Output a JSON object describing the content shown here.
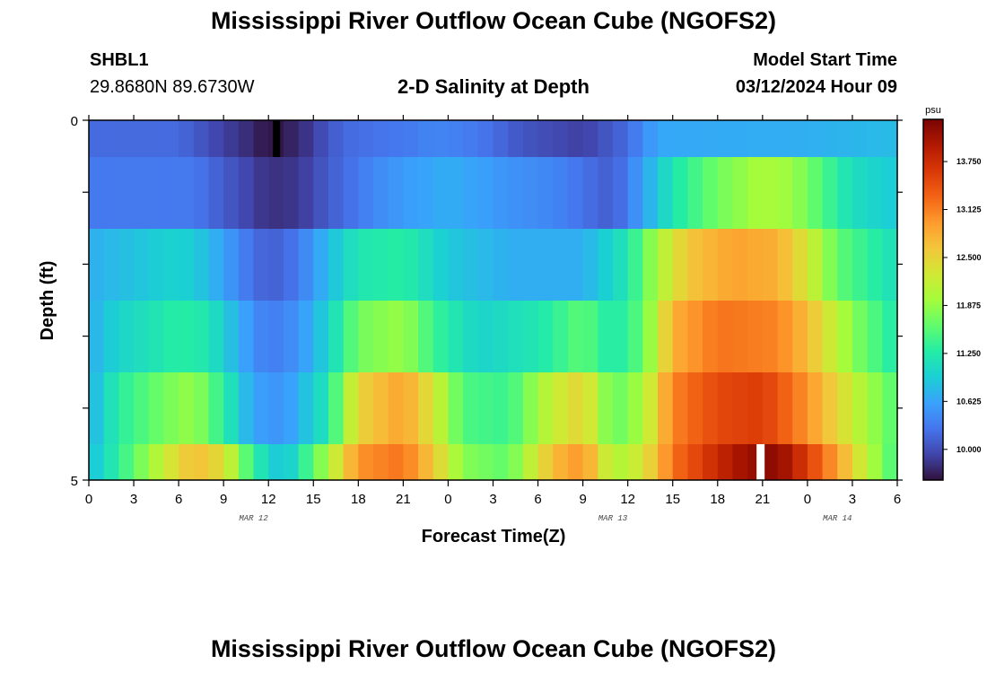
{
  "page": {
    "title": "Mississippi River Outflow Ocean Cube (NGOFS2)",
    "station_id": "SHBL1",
    "station_coords": "29.8680N  89.6730W",
    "subtitle": "2-D Salinity at Depth",
    "model_start_label": "Model Start Time",
    "model_start_value": "03/12/2024 Hour 09",
    "footer_title": "Mississippi River Outflow Ocean Cube (NGOFS2)"
  },
  "chart_data": {
    "type": "heatmap",
    "title": "2-D Salinity at Depth",
    "xlabel": "Forecast Time(Z)",
    "ylabel": "Depth (ft)",
    "x_ticks": [
      "0",
      "3",
      "6",
      "9",
      "12",
      "15",
      "18",
      "21",
      "0",
      "3",
      "6",
      "9",
      "12",
      "15",
      "18",
      "21",
      "0",
      "3",
      "6"
    ],
    "x_dates": [
      {
        "label": "MAR 12",
        "hour_index": 11
      },
      {
        "label": "MAR 13",
        "hour_index": 35
      },
      {
        "label": "MAR 14",
        "hour_index": 50
      }
    ],
    "y_ticks": [
      "0",
      "5"
    ],
    "ylim": [
      0,
      5
    ],
    "x_hours": 54,
    "colorbar": {
      "unit": "psu",
      "min": 9.6,
      "max": 14.3,
      "labels": [
        13.75,
        13.125,
        12.5,
        11.875,
        11.25,
        10.625,
        10.0
      ],
      "label_text": [
        "13.750",
        "13.125",
        "12.500",
        "11.875",
        "11.250",
        "10.625",
        "10.000"
      ],
      "colors": [
        "#30123b",
        "#4145ab",
        "#4675ed",
        "#39a2fc",
        "#1bcfd4",
        "#24eca6",
        "#61fc6c",
        "#a4fc3b",
        "#d1e834",
        "#f3c63a",
        "#fe9b2d",
        "#f36315",
        "#d93806",
        "#b11901",
        "#7a0402"
      ]
    },
    "rows": [
      {
        "depth": "0.0-0.5",
        "keys": [
          [
            0,
            10.2
          ],
          [
            6,
            10.2
          ],
          [
            9,
            9.9
          ],
          [
            11,
            9.75
          ],
          [
            12,
            9.6
          ],
          [
            14,
            9.75
          ],
          [
            17,
            10.2
          ],
          [
            21,
            10.3
          ],
          [
            23,
            10.4
          ],
          [
            26,
            10.3
          ],
          [
            29,
            10.05
          ],
          [
            33,
            9.9
          ],
          [
            36,
            10.2
          ],
          [
            38,
            10.65
          ],
          [
            48,
            10.7
          ],
          [
            54,
            10.8
          ]
        ],
        "notes": "black max-low cell near 12.5h"
      },
      {
        "depth": "0.5-1.5",
        "keys": [
          [
            0,
            10.3
          ],
          [
            7,
            10.3
          ],
          [
            10,
            10.0
          ],
          [
            12,
            9.8
          ],
          [
            14,
            9.85
          ],
          [
            16,
            10.1
          ],
          [
            20,
            10.5
          ],
          [
            24,
            10.7
          ],
          [
            28,
            10.5
          ],
          [
            31,
            10.4
          ],
          [
            35,
            10.1
          ],
          [
            37,
            10.6
          ],
          [
            39,
            11.2
          ],
          [
            42,
            11.7
          ],
          [
            45,
            12.0
          ],
          [
            47,
            11.9
          ],
          [
            49,
            11.5
          ],
          [
            51,
            11.1
          ],
          [
            54,
            10.9
          ]
        ]
      },
      {
        "depth": "1.5-2.5",
        "keys": [
          [
            0,
            10.7
          ],
          [
            2,
            10.8
          ],
          [
            6,
            11.0
          ],
          [
            8,
            10.8
          ],
          [
            10,
            10.4
          ],
          [
            12,
            10.1
          ],
          [
            14,
            10.3
          ],
          [
            16,
            10.8
          ],
          [
            18,
            11.2
          ],
          [
            21,
            11.3
          ],
          [
            24,
            10.9
          ],
          [
            28,
            10.7
          ],
          [
            33,
            10.7
          ],
          [
            36,
            11.2
          ],
          [
            38,
            12.0
          ],
          [
            40,
            12.6
          ],
          [
            43,
            12.9
          ],
          [
            46,
            12.8
          ],
          [
            48,
            12.3
          ],
          [
            50,
            11.6
          ],
          [
            54,
            11.1
          ]
        ]
      },
      {
        "depth": "2.5-3.5",
        "keys": [
          [
            0,
            10.7
          ],
          [
            2,
            11.0
          ],
          [
            6,
            11.3
          ],
          [
            8,
            11.2
          ],
          [
            10,
            10.7
          ],
          [
            12,
            10.3
          ],
          [
            14,
            10.5
          ],
          [
            16,
            11.0
          ],
          [
            18,
            11.7
          ],
          [
            21,
            11.9
          ],
          [
            23,
            11.4
          ],
          [
            26,
            11.0
          ],
          [
            30,
            11.2
          ],
          [
            33,
            11.6
          ],
          [
            35,
            11.2
          ],
          [
            37,
            11.6
          ],
          [
            39,
            12.8
          ],
          [
            42,
            13.2
          ],
          [
            46,
            13.1
          ],
          [
            48,
            12.7
          ],
          [
            51,
            11.8
          ],
          [
            54,
            11.2
          ]
        ]
      },
      {
        "depth": "3.5-4.5",
        "keys": [
          [
            0,
            10.7
          ],
          [
            2,
            11.3
          ],
          [
            5,
            11.7
          ],
          [
            7,
            11.9
          ],
          [
            9,
            11.3
          ],
          [
            11,
            10.6
          ],
          [
            13,
            10.5
          ],
          [
            16,
            11.2
          ],
          [
            18,
            12.5
          ],
          [
            21,
            12.9
          ],
          [
            23,
            12.3
          ],
          [
            25,
            11.5
          ],
          [
            28,
            11.4
          ],
          [
            31,
            12.2
          ],
          [
            33,
            12.5
          ],
          [
            35,
            11.6
          ],
          [
            37,
            12.0
          ],
          [
            39,
            13.1
          ],
          [
            42,
            13.5
          ],
          [
            45,
            13.6
          ],
          [
            48,
            13.0
          ],
          [
            51,
            12.2
          ],
          [
            54,
            11.5
          ]
        ]
      },
      {
        "depth": "4.5-5.0",
        "keys": [
          [
            0,
            10.8
          ],
          [
            3,
            11.6
          ],
          [
            5,
            12.2
          ],
          [
            7,
            12.7
          ],
          [
            9,
            12.4
          ],
          [
            11,
            11.3
          ],
          [
            13,
            10.8
          ],
          [
            16,
            12.0
          ],
          [
            18,
            13.0
          ],
          [
            21,
            13.2
          ],
          [
            23,
            12.6
          ],
          [
            25,
            11.8
          ],
          [
            28,
            11.6
          ],
          [
            31,
            12.7
          ],
          [
            33,
            13.0
          ],
          [
            35,
            12.0
          ],
          [
            37,
            12.3
          ],
          [
            39,
            13.2
          ],
          [
            42,
            13.8
          ],
          [
            44,
            14.1
          ],
          [
            46,
            14.2
          ],
          [
            48,
            13.6
          ],
          [
            50,
            12.9
          ],
          [
            52,
            12.1
          ],
          [
            54,
            11.4
          ]
        ],
        "notes": "white max-high cell near 20.5h"
      }
    ],
    "grid": false
  }
}
